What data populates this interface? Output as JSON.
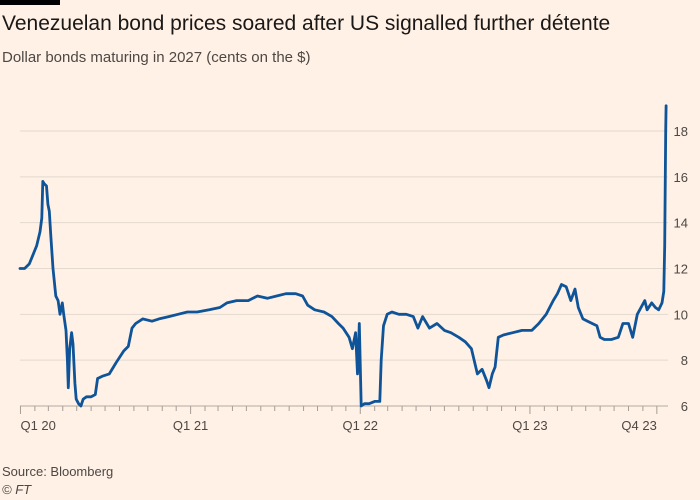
{
  "title": "Venezuelan bond prices soared after US signalled further détente",
  "subtitle": "Dollar bonds maturing in 2027 (cents on the $)",
  "source": "Source: Bloomberg",
  "credit": "© FT",
  "colors": {
    "line": "#0f5499",
    "background": "#fff1e5",
    "grid": "#e3d9cf"
  },
  "chart_data": {
    "type": "line",
    "title": "Venezuelan bond prices soared after US signalled further détente",
    "subtitle": "Dollar bonds maturing in 2027 (cents on the $)",
    "xlabel": "",
    "ylabel": "",
    "ylim": [
      6,
      19
    ],
    "yticks": [
      6,
      8,
      10,
      12,
      14,
      16,
      18
    ],
    "xticks": [
      {
        "label": "Q1 20",
        "x": "2020-01-01"
      },
      {
        "label": "Q1 21",
        "x": "2021-01-01"
      },
      {
        "label": "Q1 22",
        "x": "2022-01-01"
      },
      {
        "label": "Q1 23",
        "x": "2023-01-01"
      },
      {
        "label": "Q4 23",
        "x": "2023-10-01"
      }
    ],
    "xlim": [
      "2019-12-31",
      "2023-10-25"
    ],
    "grid": "horizontal",
    "series": [
      {
        "values": [
          [
            "2019-12-31",
            12.0
          ],
          [
            "2020-01-10",
            12.0
          ],
          [
            "2020-01-20",
            12.2
          ],
          [
            "2020-01-28",
            12.6
          ],
          [
            "2020-02-05",
            13.0
          ],
          [
            "2020-02-12",
            13.6
          ],
          [
            "2020-02-16",
            14.2
          ],
          [
            "2020-02-18",
            15.8
          ],
          [
            "2020-02-21",
            15.7
          ],
          [
            "2020-02-26",
            15.6
          ],
          [
            "2020-02-29",
            14.8
          ],
          [
            "2020-03-03",
            14.5
          ],
          [
            "2020-03-06",
            13.5
          ],
          [
            "2020-03-11",
            12.0
          ],
          [
            "2020-03-17",
            10.8
          ],
          [
            "2020-03-22",
            10.6
          ],
          [
            "2020-03-26",
            10.0
          ],
          [
            "2020-03-31",
            10.5
          ],
          [
            "2020-04-03",
            10.0
          ],
          [
            "2020-04-08",
            9.3
          ],
          [
            "2020-04-11",
            8.0
          ],
          [
            "2020-04-13",
            6.8
          ],
          [
            "2020-04-16",
            8.5
          ],
          [
            "2020-04-20",
            9.2
          ],
          [
            "2020-04-23",
            8.7
          ],
          [
            "2020-04-27",
            7.0
          ],
          [
            "2020-04-30",
            6.3
          ],
          [
            "2020-05-05",
            6.1
          ],
          [
            "2020-05-10",
            6.0
          ],
          [
            "2020-05-15",
            6.3
          ],
          [
            "2020-05-22",
            6.4
          ],
          [
            "2020-06-01",
            6.4
          ],
          [
            "2020-06-10",
            6.5
          ],
          [
            "2020-06-15",
            7.2
          ],
          [
            "2020-06-25",
            7.3
          ],
          [
            "2020-07-10",
            7.4
          ],
          [
            "2020-07-25",
            7.9
          ],
          [
            "2020-08-10",
            8.4
          ],
          [
            "2020-08-20",
            8.6
          ],
          [
            "2020-08-28",
            9.4
          ],
          [
            "2020-09-05",
            9.6
          ],
          [
            "2020-09-20",
            9.8
          ],
          [
            "2020-10-10",
            9.7
          ],
          [
            "2020-10-25",
            9.8
          ],
          [
            "2020-11-15",
            9.9
          ],
          [
            "2020-12-05",
            10.0
          ],
          [
            "2020-12-25",
            10.1
          ],
          [
            "2021-01-15",
            10.1
          ],
          [
            "2021-02-10",
            10.2
          ],
          [
            "2021-03-05",
            10.3
          ],
          [
            "2021-03-20",
            10.5
          ],
          [
            "2021-04-10",
            10.6
          ],
          [
            "2021-05-05",
            10.6
          ],
          [
            "2021-05-25",
            10.8
          ],
          [
            "2021-06-15",
            10.7
          ],
          [
            "2021-07-05",
            10.8
          ],
          [
            "2021-07-25",
            10.9
          ],
          [
            "2021-08-15",
            10.9
          ],
          [
            "2021-08-30",
            10.8
          ],
          [
            "2021-09-10",
            10.4
          ],
          [
            "2021-09-25",
            10.2
          ],
          [
            "2021-10-15",
            10.1
          ],
          [
            "2021-11-01",
            9.9
          ],
          [
            "2021-11-15",
            9.6
          ],
          [
            "2021-11-25",
            9.4
          ],
          [
            "2021-12-08",
            9.0
          ],
          [
            "2021-12-15",
            8.5
          ],
          [
            "2021-12-22",
            9.2
          ],
          [
            "2021-12-26",
            7.4
          ],
          [
            "2021-12-30",
            9.6
          ],
          [
            "2022-01-03",
            6.0
          ],
          [
            "2022-01-10",
            6.1
          ],
          [
            "2022-01-20",
            6.1
          ],
          [
            "2022-02-01",
            6.2
          ],
          [
            "2022-02-12",
            6.2
          ],
          [
            "2022-02-15",
            8.0
          ],
          [
            "2022-02-20",
            9.5
          ],
          [
            "2022-02-28",
            10.0
          ],
          [
            "2022-03-10",
            10.1
          ],
          [
            "2022-03-25",
            10.0
          ],
          [
            "2022-04-10",
            10.0
          ],
          [
            "2022-04-25",
            9.9
          ],
          [
            "2022-05-05",
            9.4
          ],
          [
            "2022-05-15",
            9.9
          ],
          [
            "2022-05-30",
            9.4
          ],
          [
            "2022-06-15",
            9.6
          ],
          [
            "2022-07-01",
            9.3
          ],
          [
            "2022-07-15",
            9.2
          ],
          [
            "2022-08-01",
            9.0
          ],
          [
            "2022-08-15",
            8.8
          ],
          [
            "2022-08-28",
            8.5
          ],
          [
            "2022-09-10",
            7.4
          ],
          [
            "2022-09-20",
            7.6
          ],
          [
            "2022-09-30",
            7.1
          ],
          [
            "2022-10-05",
            6.8
          ],
          [
            "2022-10-12",
            7.4
          ],
          [
            "2022-10-18",
            7.7
          ],
          [
            "2022-10-25",
            9.0
          ],
          [
            "2022-11-05",
            9.1
          ],
          [
            "2022-11-25",
            9.2
          ],
          [
            "2022-12-15",
            9.3
          ],
          [
            "2023-01-05",
            9.3
          ],
          [
            "2023-01-20",
            9.6
          ],
          [
            "2023-02-05",
            10.0
          ],
          [
            "2023-02-20",
            10.6
          ],
          [
            "2023-03-01",
            10.9
          ],
          [
            "2023-03-10",
            11.3
          ],
          [
            "2023-03-20",
            11.2
          ],
          [
            "2023-03-30",
            10.6
          ],
          [
            "2023-04-08",
            11.1
          ],
          [
            "2023-04-15",
            10.3
          ],
          [
            "2023-04-25",
            9.8
          ],
          [
            "2023-05-05",
            9.7
          ],
          [
            "2023-05-15",
            9.6
          ],
          [
            "2023-05-25",
            9.5
          ],
          [
            "2023-06-01",
            9.0
          ],
          [
            "2023-06-10",
            8.9
          ],
          [
            "2023-06-25",
            8.9
          ],
          [
            "2023-07-10",
            9.0
          ],
          [
            "2023-07-20",
            9.6
          ],
          [
            "2023-08-01",
            9.6
          ],
          [
            "2023-08-10",
            9.0
          ],
          [
            "2023-08-20",
            10.0
          ],
          [
            "2023-08-28",
            10.3
          ],
          [
            "2023-09-05",
            10.6
          ],
          [
            "2023-09-10",
            10.2
          ],
          [
            "2023-09-20",
            10.5
          ],
          [
            "2023-09-28",
            10.3
          ],
          [
            "2023-10-05",
            10.2
          ],
          [
            "2023-10-12",
            10.5
          ],
          [
            "2023-10-16",
            11.0
          ],
          [
            "2023-10-18",
            13.0
          ],
          [
            "2023-10-20",
            18.0
          ],
          [
            "2023-10-21",
            19.1
          ]
        ]
      }
    ]
  }
}
